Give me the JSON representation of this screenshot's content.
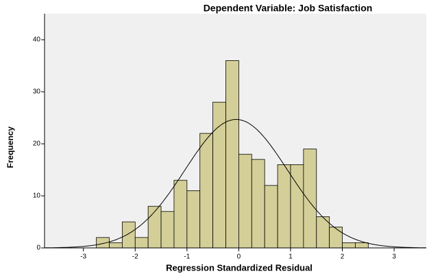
{
  "chart_data": {
    "type": "histogram",
    "subtitle": "Dependent Variable: Job Satisfaction",
    "xlabel": "Regression Standardized Residual",
    "ylabel": "Frequency",
    "bins": [
      -2.75,
      -2.5,
      -2.25,
      -2.0,
      -1.75,
      -1.5,
      -1.25,
      -1.0,
      -0.75,
      -0.5,
      -0.25,
      0.0,
      0.25,
      0.5,
      0.75,
      1.0,
      1.25,
      1.5,
      1.75,
      2.0,
      2.25,
      2.5
    ],
    "values": [
      2,
      1,
      5,
      2,
      8,
      7,
      13,
      11,
      22,
      28,
      36,
      18,
      17,
      12,
      16,
      16,
      19,
      6,
      4,
      1,
      1
    ],
    "color": "#d4cf98",
    "normal_curve": {
      "mean": -0.05,
      "std": 0.99
    },
    "xlim": [
      -3.75,
      3.62
    ],
    "ylim": [
      0,
      45
    ],
    "xticks": [
      -3,
      -2,
      -1,
      0,
      1,
      2,
      3
    ],
    "yticks": [
      0,
      10,
      20,
      30,
      40
    ],
    "grid": false
  }
}
